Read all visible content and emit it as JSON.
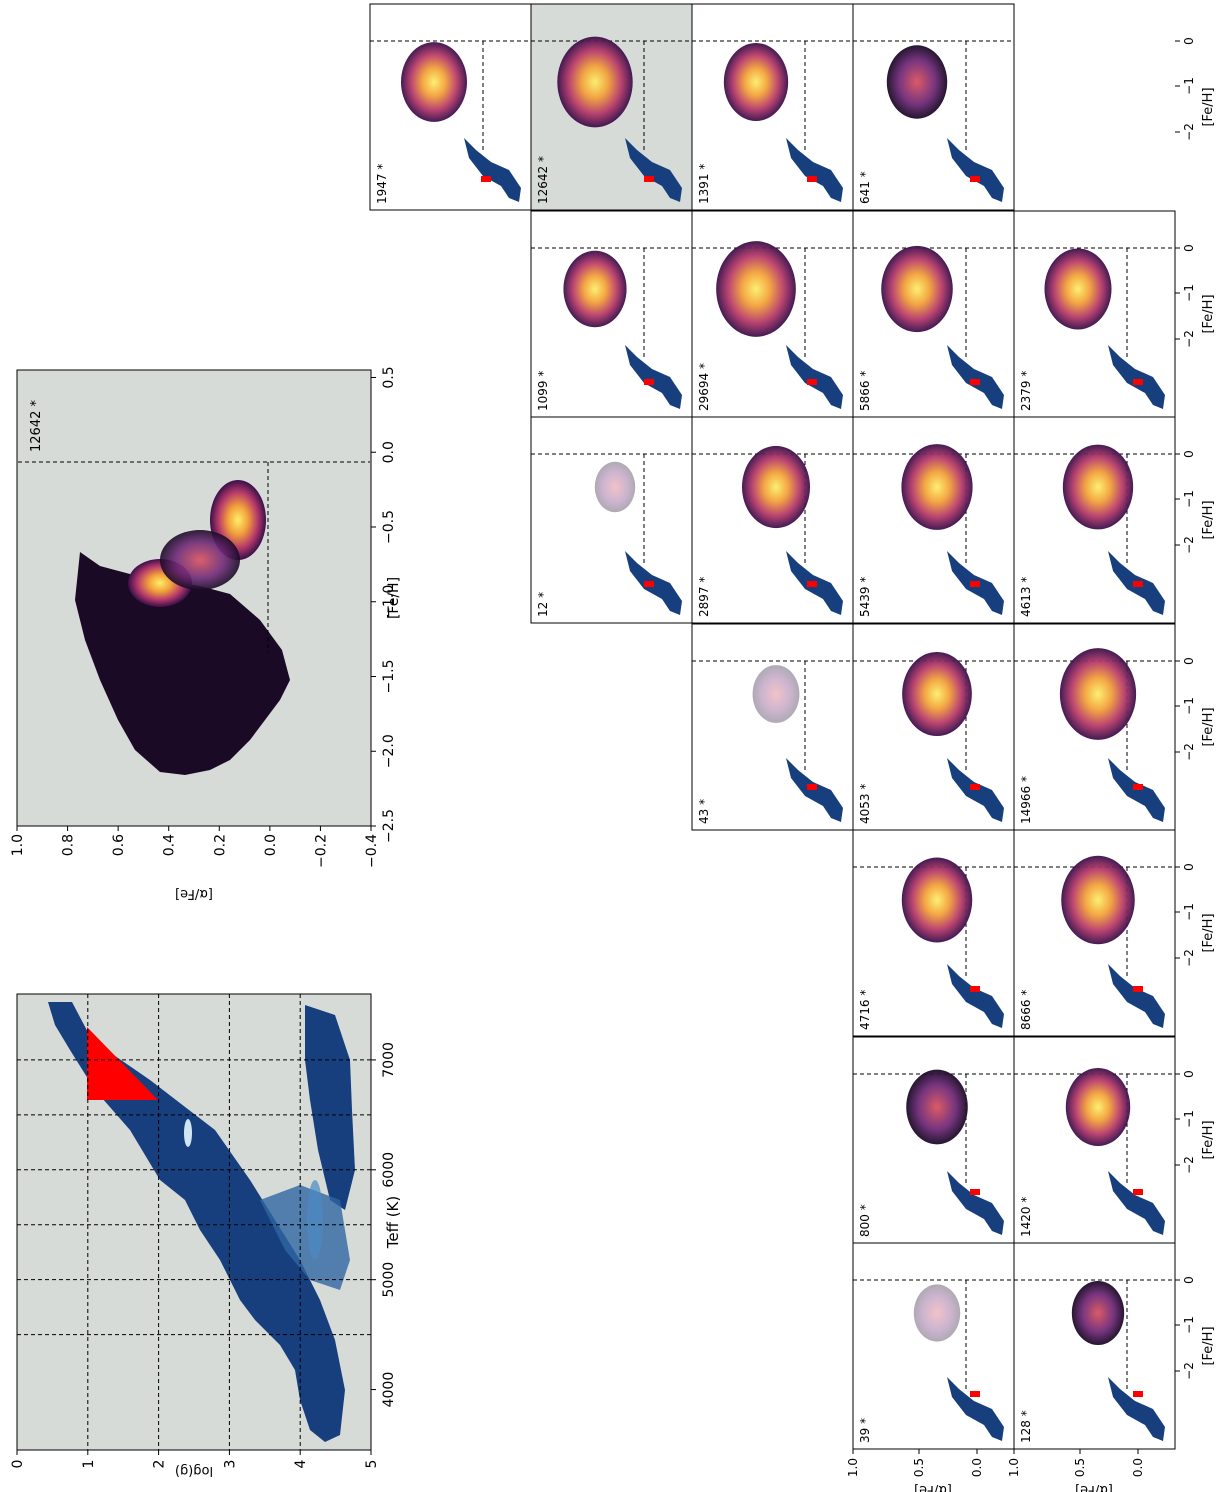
{
  "colors": {
    "background": "#d7dbd7",
    "hr_blue": "#173f7e",
    "hr_blue_light": "#4a8ac2",
    "selection": "#ff0000",
    "density_dark": "#000000",
    "density_mid": "#7c2e7d",
    "density_hot": "#f3a23a",
    "density_peak": "#fcee6b",
    "refline": "#000000"
  },
  "chart_data": [
    {
      "id": "hr_diagram",
      "type": "heatmap",
      "xlabel": "log(g)",
      "ylabel": "Teff (K)",
      "xlim": [
        0,
        5
      ],
      "ylim": [
        7600,
        3450
      ],
      "xticks": [
        "0",
        "1",
        "2",
        "3",
        "4",
        "5"
      ],
      "yticks": [
        "7000",
        "6000",
        "5000",
        "4000"
      ],
      "grid_logg": [
        1,
        2,
        3,
        4
      ],
      "grid_teff": [
        7000,
        6500,
        6000,
        5500,
        5000,
        4500
      ],
      "selection_region": {
        "logg": [
          1,
          2
        ],
        "teff": [
          3750,
          4500
        ]
      },
      "orientation": "rotated 90 degrees"
    },
    {
      "id": "alpha_fe_zoom",
      "type": "heatmap",
      "xlabel": "[α/Fe]",
      "ylabel": "[Fe/H]",
      "xlim": [
        1.0,
        -0.4
      ],
      "ylim": [
        -2.5,
        0.55
      ],
      "xticks": [
        "1.0",
        "0.8",
        "0.6",
        "0.4",
        "0.2",
        "0.0",
        "−0.2",
        "−0.4"
      ],
      "yticks": [
        "−2.5",
        "−2.0",
        "−1.5",
        "−1.0",
        "−0.5",
        "0.0",
        "0.5"
      ],
      "annotation": "12642 *",
      "reference_lines": {
        "alpha_fe": 0.0,
        "fe_h": 0.0
      },
      "density_peaks": [
        {
          "fe_h": -0.8,
          "alpha_fe": 0.37
        },
        {
          "fe_h": -0.33,
          "alpha_fe": 0.08
        }
      ]
    },
    {
      "id": "grid",
      "type": "heatmap",
      "orientation": "rotated 90 degrees",
      "shared_xlabel": "[Fe/H]",
      "shared_xticks": [
        "−2",
        "−1",
        "0"
      ],
      "shared_ylabel": "[α/Fe]",
      "shared_yticks": [
        "1.0",
        "0.5",
        "0.0"
      ],
      "xlim": [
        -2.7,
        0.6
      ],
      "ylim": [
        -0.4,
        1.0
      ],
      "rows_by_logg_bin": [
        "1-2",
        "2-3",
        "3-4",
        "4-5"
      ],
      "columns_by_teff_bin": [
        "7000-7500",
        "6500-7000",
        "6000-6500",
        "5500-6000",
        "5000-5500",
        "4500-5000",
        "4000-4500"
      ],
      "panels": [
        {
          "row": 0,
          "col": 6,
          "count": "1947 *",
          "highlighted": false
        },
        {
          "row": 1,
          "col": 6,
          "count": "12642 *",
          "highlighted": true
        },
        {
          "row": 2,
          "col": 6,
          "count": "1391 *",
          "highlighted": false
        },
        {
          "row": 3,
          "col": 6,
          "count": "641 *",
          "highlighted": false
        },
        {
          "row": 1,
          "col": 5,
          "count": "1099 *",
          "highlighted": false
        },
        {
          "row": 2,
          "col": 5,
          "count": "29694 *",
          "highlighted": false
        },
        {
          "row": 3,
          "col": 5,
          "count": "5866 *",
          "highlighted": false
        },
        {
          "row": 4,
          "col": 5,
          "count": "2379 *",
          "highlighted": false
        },
        {
          "row": 1,
          "col": 4,
          "count": "12 *",
          "highlighted": false
        },
        {
          "row": 2,
          "col": 4,
          "count": "2897 *",
          "highlighted": false
        },
        {
          "row": 3,
          "col": 4,
          "count": "5439 *",
          "highlighted": false
        },
        {
          "row": 4,
          "col": 4,
          "count": "4613 *",
          "highlighted": false
        },
        {
          "row": 2,
          "col": 3,
          "count": "43 *",
          "highlighted": false
        },
        {
          "row": 3,
          "col": 3,
          "count": "4053 *",
          "highlighted": false
        },
        {
          "row": 4,
          "col": 3,
          "count": "14966 *",
          "highlighted": false
        },
        {
          "row": 3,
          "col": 2,
          "count": "4716 *",
          "highlighted": false
        },
        {
          "row": 4,
          "col": 2,
          "count": "8666 *",
          "highlighted": false
        },
        {
          "row": 3,
          "col": 1,
          "count": "800 *",
          "highlighted": false
        },
        {
          "row": 4,
          "col": 1,
          "count": "1420 *",
          "highlighted": false
        },
        {
          "row": 3,
          "col": 0,
          "count": "39 *",
          "highlighted": false
        },
        {
          "row": 4,
          "col": 0,
          "count": "128 *",
          "highlighted": false
        }
      ]
    }
  ]
}
